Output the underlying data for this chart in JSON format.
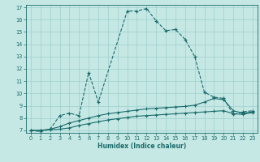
{
  "xlabel": "Humidex (Indice chaleur)",
  "xlim": [
    -0.5,
    23.5
  ],
  "ylim": [
    6.8,
    17.2
  ],
  "yticks": [
    7,
    8,
    9,
    10,
    11,
    12,
    13,
    14,
    15,
    16,
    17
  ],
  "xticks": [
    0,
    1,
    2,
    3,
    4,
    5,
    6,
    7,
    8,
    9,
    10,
    11,
    12,
    13,
    14,
    15,
    16,
    17,
    18,
    19,
    20,
    21,
    22,
    23
  ],
  "background_color": "#c5e8e5",
  "grid_color": "#9ecfcc",
  "line_color": "#1a6b6b",
  "line1_x": [
    0,
    1,
    2,
    3,
    4,
    5,
    6,
    7,
    10,
    11,
    12,
    13,
    14,
    15,
    16,
    17,
    18,
    19,
    20,
    21,
    22,
    23
  ],
  "line1_y": [
    7.0,
    6.9,
    7.1,
    8.2,
    8.4,
    8.2,
    11.7,
    9.3,
    16.7,
    16.7,
    16.9,
    15.9,
    15.1,
    15.2,
    14.4,
    13.0,
    10.1,
    9.7,
    9.6,
    8.3,
    8.5,
    8.6
  ],
  "line2_x": [
    0,
    1,
    2,
    3,
    4,
    5,
    6,
    7,
    8,
    9,
    10,
    11,
    12,
    13,
    14,
    15,
    16,
    17,
    18,
    19,
    20,
    21,
    22,
    23
  ],
  "line2_y": [
    7.0,
    7.0,
    7.1,
    7.3,
    7.6,
    7.8,
    8.0,
    8.2,
    8.35,
    8.45,
    8.55,
    8.65,
    8.75,
    8.8,
    8.85,
    8.9,
    8.95,
    9.05,
    9.3,
    9.6,
    9.5,
    8.6,
    8.4,
    8.5
  ],
  "line3_x": [
    0,
    1,
    2,
    3,
    4,
    5,
    6,
    7,
    8,
    9,
    10,
    11,
    12,
    13,
    14,
    15,
    16,
    17,
    18,
    19,
    20,
    21,
    22,
    23
  ],
  "line3_y": [
    7.0,
    7.0,
    7.05,
    7.1,
    7.2,
    7.4,
    7.55,
    7.7,
    7.85,
    7.95,
    8.05,
    8.15,
    8.2,
    8.25,
    8.3,
    8.35,
    8.4,
    8.45,
    8.5,
    8.55,
    8.6,
    8.35,
    8.3,
    8.45
  ]
}
